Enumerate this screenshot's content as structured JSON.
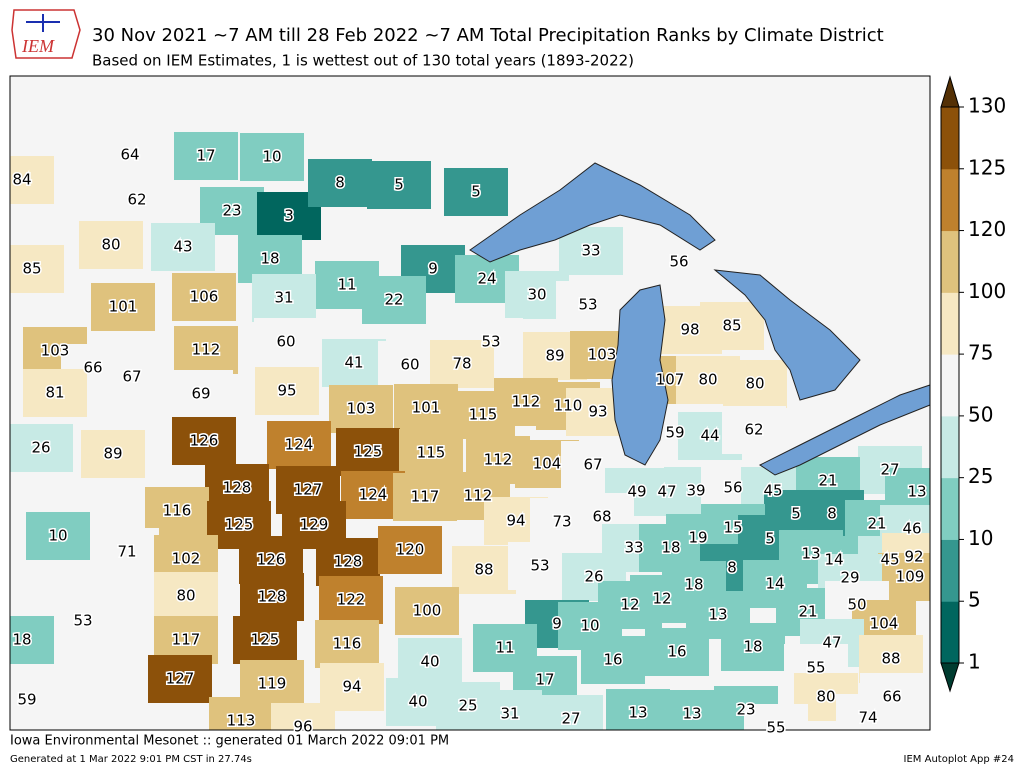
{
  "header": {
    "logo_text": "IEM",
    "title": "30 Nov 2021 ~7 AM till 28 Feb 2022 ~7 AM Total Precipitation Ranks by Climate District",
    "subtitle": "Based on IEM Estimates, 1 is wettest out of 130 total years (1893-2022)"
  },
  "colorbar": {
    "ticks": [
      1,
      5,
      10,
      25,
      50,
      75,
      100,
      120,
      125,
      130
    ],
    "colors": [
      "#01665e",
      "#35978f",
      "#80cdc1",
      "#c7eae5",
      "#f5f5f5",
      "#f6e8c3",
      "#dfc27d",
      "#bf812d",
      "#8c510a"
    ],
    "under_color": "#003c30",
    "over_color": "#543005"
  },
  "districts": [
    64,
    17,
    10,
    84,
    62,
    23,
    3,
    8,
    5,
    5,
    80,
    43,
    18,
    85,
    33,
    56,
    9,
    11,
    22,
    24,
    30,
    53,
    101,
    106,
    31,
    98,
    85,
    103,
    66,
    67,
    112,
    60,
    53,
    89,
    103,
    81,
    69,
    95,
    41,
    60,
    78,
    107,
    80,
    80,
    103,
    101,
    115,
    112,
    110,
    93,
    26,
    89,
    126,
    124,
    125,
    115,
    112,
    104,
    67,
    59,
    44,
    62,
    27,
    13,
    128,
    127,
    124,
    117,
    112,
    49,
    47,
    39,
    56,
    45,
    21,
    116,
    125,
    129,
    94,
    73,
    68,
    5,
    8,
    21,
    46,
    10,
    71,
    102,
    126,
    128,
    120,
    33,
    18,
    19,
    15,
    5,
    13,
    14,
    45,
    92,
    109,
    80,
    128,
    122,
    88,
    53,
    26,
    8,
    14,
    29,
    18,
    53,
    117,
    125,
    116,
    100,
    9,
    10,
    12,
    12,
    13,
    21,
    50,
    104,
    18,
    47,
    40,
    11,
    16,
    16,
    18,
    88,
    55,
    59,
    127,
    119,
    94,
    17,
    80,
    66,
    40,
    25,
    31,
    27,
    13,
    13,
    23,
    113,
    96,
    74,
    55
  ],
  "footer": {
    "left": "Iowa Environmental Mesonet :: generated 01 March 2022 09:01 PM",
    "generated": "Generated at 1 Mar 2022 9:01 PM CST in 27.74s",
    "right": "IEM Autoplot App #24"
  }
}
